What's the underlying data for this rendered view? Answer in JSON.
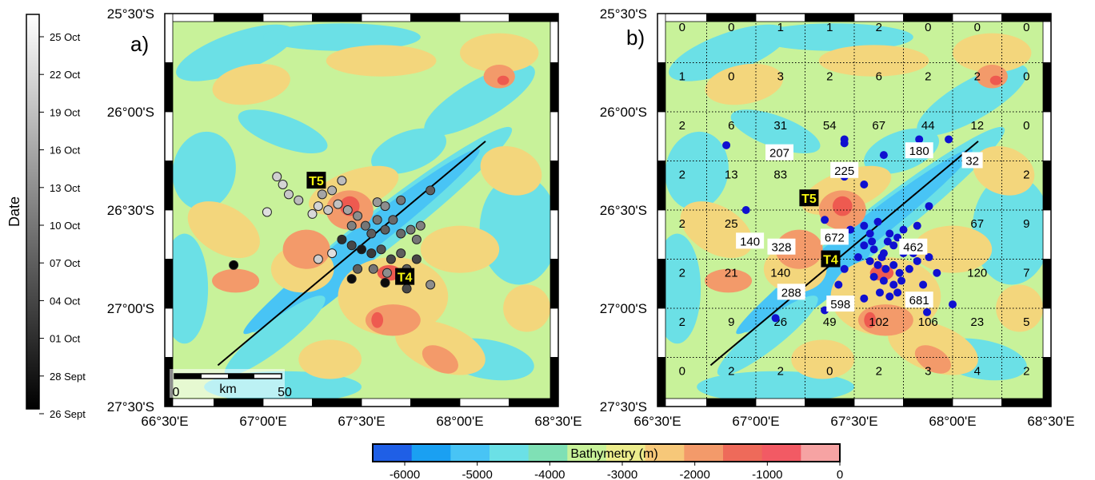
{
  "date_colorbar": {
    "title": "Date",
    "labels": [
      "25 Oct",
      "22 Oct",
      "19 Oct",
      "16 Oct",
      "13 Oct",
      "10 Oct",
      "07 Oct",
      "04 Oct",
      "01 Oct",
      "28 Sept",
      "26 Sept"
    ]
  },
  "panel_a": {
    "label": "a)",
    "lat_labels": [
      "25°30'S",
      "26°00'S",
      "26°30'S",
      "27°00'S",
      "27°30'S"
    ],
    "lon_labels": [
      "66°30'E",
      "67°00'E",
      "67°30'E",
      "68°00'E",
      "68°30'E"
    ],
    "markers": [
      {
        "id": "T5",
        "lon": 67.27,
        "lat": -26.35
      },
      {
        "id": "T4",
        "lon": 67.72,
        "lat": -26.84
      }
    ],
    "scale_bar": {
      "left_label": "0",
      "unit_label": "km",
      "right_label": "50"
    },
    "profile_line": [
      [
        66.77,
        -27.29
      ],
      [
        68.13,
        -26.15
      ]
    ],
    "events": [
      {
        "lon": 67.07,
        "lat": -26.33,
        "shade": 0.88
      },
      {
        "lon": 67.1,
        "lat": -26.37,
        "shade": 0.9
      },
      {
        "lon": 67.13,
        "lat": -26.42,
        "shade": 0.85
      },
      {
        "lon": 67.02,
        "lat": -26.51,
        "shade": 0.95
      },
      {
        "lon": 67.18,
        "lat": -26.45,
        "shade": 0.8
      },
      {
        "lon": 67.3,
        "lat": -26.42,
        "shade": 0.7
      },
      {
        "lon": 67.28,
        "lat": -26.48,
        "shade": 0.9
      },
      {
        "lon": 67.25,
        "lat": -26.52,
        "shade": 0.92
      },
      {
        "lon": 67.33,
        "lat": -26.5,
        "shade": 0.85
      },
      {
        "lon": 67.38,
        "lat": -26.47,
        "shade": 0.82
      },
      {
        "lon": 67.43,
        "lat": -26.5,
        "shade": 0.7
      },
      {
        "lon": 67.48,
        "lat": -26.53,
        "shade": 0.6
      },
      {
        "lon": 67.45,
        "lat": -26.58,
        "shade": 0.55
      },
      {
        "lon": 67.52,
        "lat": -26.58,
        "shade": 0.5
      },
      {
        "lon": 67.55,
        "lat": -26.62,
        "shade": 0.4
      },
      {
        "lon": 67.58,
        "lat": -26.55,
        "shade": 0.5
      },
      {
        "lon": 67.62,
        "lat": -26.6,
        "shade": 0.4
      },
      {
        "lon": 67.66,
        "lat": -26.55,
        "shade": 0.45
      },
      {
        "lon": 67.7,
        "lat": -26.62,
        "shade": 0.45
      },
      {
        "lon": 67.75,
        "lat": -26.6,
        "shade": 0.5
      },
      {
        "lon": 67.78,
        "lat": -26.65,
        "shade": 0.5
      },
      {
        "lon": 67.8,
        "lat": -26.58,
        "shade": 0.55
      },
      {
        "lon": 67.4,
        "lat": -26.65,
        "shade": 0.2
      },
      {
        "lon": 67.45,
        "lat": -26.68,
        "shade": 0.3
      },
      {
        "lon": 67.5,
        "lat": -26.7,
        "shade": 0.1
      },
      {
        "lon": 67.55,
        "lat": -26.72,
        "shade": 0.25
      },
      {
        "lon": 67.6,
        "lat": -26.7,
        "shade": 0.35
      },
      {
        "lon": 67.65,
        "lat": -26.75,
        "shade": 0.3
      },
      {
        "lon": 67.7,
        "lat": -26.72,
        "shade": 0.4
      },
      {
        "lon": 67.78,
        "lat": -26.75,
        "shade": 0.3
      },
      {
        "lon": 67.48,
        "lat": -26.8,
        "shade": 0.4
      },
      {
        "lon": 67.56,
        "lat": -26.8,
        "shade": 0.5
      },
      {
        "lon": 67.63,
        "lat": -26.82,
        "shade": 0.6
      },
      {
        "lon": 67.73,
        "lat": -26.8,
        "shade": 0.4
      },
      {
        "lon": 67.35,
        "lat": -26.72,
        "shade": 0.95
      },
      {
        "lon": 67.28,
        "lat": -26.75,
        "shade": 0.88
      },
      {
        "lon": 67.45,
        "lat": -26.85,
        "shade": 0.05
      },
      {
        "lon": 67.62,
        "lat": -26.87,
        "shade": 0.05
      },
      {
        "lon": 67.73,
        "lat": -26.9,
        "shade": 0.3
      },
      {
        "lon": 67.85,
        "lat": -26.88,
        "shade": 0.6
      },
      {
        "lon": 67.85,
        "lat": -26.4,
        "shade": 0.4
      },
      {
        "lon": 67.7,
        "lat": -26.45,
        "shade": 0.5
      },
      {
        "lon": 67.4,
        "lat": -26.35,
        "shade": 0.8
      },
      {
        "lon": 67.35,
        "lat": -26.4,
        "shade": 0.75
      },
      {
        "lon": 67.58,
        "lat": -26.46,
        "shade": 0.65
      },
      {
        "lon": 67.62,
        "lat": -26.48,
        "shade": 0.6
      },
      {
        "lon": 66.85,
        "lat": -26.78,
        "shade": 0.02
      }
    ]
  },
  "panel_b": {
    "label": "b)",
    "lat_labels": [
      "25°30'S",
      "26°00'S",
      "26°30'S",
      "27°00'S",
      "27°30'S"
    ],
    "lon_labels": [
      "66°30'E",
      "67°00'E",
      "67°30'E",
      "68°00'E",
      "68°30'E"
    ],
    "markers": [
      {
        "id": "T5",
        "lon": 67.27,
        "lat": -26.44
      },
      {
        "id": "T4",
        "lon": 67.38,
        "lat": -26.75
      }
    ],
    "profile_line": [
      [
        66.77,
        -27.29
      ],
      [
        68.13,
        -26.15
      ]
    ],
    "grid_counts": [
      [
        "0",
        "0",
        "1",
        "1",
        "2",
        "0",
        "0",
        "0"
      ],
      [
        "1",
        "0",
        "3",
        "2",
        "6",
        "2",
        "2",
        "0"
      ],
      [
        "2",
        "6",
        "31",
        "54",
        "67",
        "44",
        "12",
        "0"
      ],
      [
        "2",
        "13",
        "83",
        "",
        "",
        "",
        "",
        "2"
      ],
      [
        "2",
        "25",
        "",
        "",
        "",
        "",
        "67",
        "9"
      ],
      [
        "2",
        "21",
        "140",
        "",
        "",
        "",
        "120",
        "7"
      ],
      [
        "2",
        "9",
        "26",
        "49",
        "102",
        "106",
        "23",
        "5"
      ],
      [
        "0",
        "2",
        "2",
        "0",
        "2",
        "3",
        "4",
        "2"
      ]
    ],
    "boxed_counts": [
      {
        "text": "207",
        "lon": 67.12,
        "lat": -26.21
      },
      {
        "text": "225",
        "lon": 67.45,
        "lat": -26.3
      },
      {
        "text": "180",
        "lon": 67.83,
        "lat": -26.2
      },
      {
        "text": "32",
        "lon": 68.1,
        "lat": -26.25
      },
      {
        "text": "140",
        "lon": 66.97,
        "lat": -26.66
      },
      {
        "text": "328",
        "lon": 67.13,
        "lat": -26.69
      },
      {
        "text": "672",
        "lon": 67.4,
        "lat": -26.64
      },
      {
        "text": "462",
        "lon": 67.8,
        "lat": -26.69
      },
      {
        "text": "288",
        "lon": 67.18,
        "lat": -26.92
      },
      {
        "text": "598",
        "lon": 67.43,
        "lat": -26.98
      },
      {
        "text": "681",
        "lon": 67.83,
        "lat": -26.96
      }
    ],
    "events": [
      {
        "lon": 66.85,
        "lat": -26.17
      },
      {
        "lon": 67.45,
        "lat": -26.14
      },
      {
        "lon": 67.45,
        "lat": -26.16
      },
      {
        "lon": 67.65,
        "lat": -26.22
      },
      {
        "lon": 67.83,
        "lat": -26.14
      },
      {
        "lon": 67.98,
        "lat": -26.14
      },
      {
        "lon": 67.45,
        "lat": -26.33
      },
      {
        "lon": 67.55,
        "lat": -26.37
      },
      {
        "lon": 67.88,
        "lat": -26.48
      },
      {
        "lon": 66.95,
        "lat": -26.5
      },
      {
        "lon": 67.35,
        "lat": -26.55
      },
      {
        "lon": 67.48,
        "lat": -26.6
      },
      {
        "lon": 67.55,
        "lat": -26.58
      },
      {
        "lon": 67.58,
        "lat": -26.62
      },
      {
        "lon": 67.62,
        "lat": -26.56
      },
      {
        "lon": 67.68,
        "lat": -26.62
      },
      {
        "lon": 67.72,
        "lat": -26.64
      },
      {
        "lon": 67.75,
        "lat": -26.6
      },
      {
        "lon": 67.82,
        "lat": -26.58
      },
      {
        "lon": 67.55,
        "lat": -26.68
      },
      {
        "lon": 67.6,
        "lat": -26.7
      },
      {
        "lon": 67.65,
        "lat": -26.72
      },
      {
        "lon": 67.7,
        "lat": -26.68
      },
      {
        "lon": 67.75,
        "lat": -26.72
      },
      {
        "lon": 67.78,
        "lat": -26.7
      },
      {
        "lon": 67.52,
        "lat": -26.74
      },
      {
        "lon": 67.58,
        "lat": -26.76
      },
      {
        "lon": 67.62,
        "lat": -26.78
      },
      {
        "lon": 67.66,
        "lat": -26.8
      },
      {
        "lon": 67.7,
        "lat": -26.78
      },
      {
        "lon": 67.73,
        "lat": -26.82
      },
      {
        "lon": 67.78,
        "lat": -26.8
      },
      {
        "lon": 67.82,
        "lat": -26.76
      },
      {
        "lon": 67.6,
        "lat": -26.84
      },
      {
        "lon": 67.65,
        "lat": -26.86
      },
      {
        "lon": 67.7,
        "lat": -26.88
      },
      {
        "lon": 67.74,
        "lat": -26.86
      },
      {
        "lon": 67.63,
        "lat": -26.92
      },
      {
        "lon": 67.68,
        "lat": -26.94
      },
      {
        "lon": 67.72,
        "lat": -26.92
      },
      {
        "lon": 67.55,
        "lat": -26.95
      },
      {
        "lon": 67.42,
        "lat": -26.88
      },
      {
        "lon": 67.45,
        "lat": -26.8
      },
      {
        "lon": 67.88,
        "lat": -26.74
      },
      {
        "lon": 67.92,
        "lat": -26.82
      },
      {
        "lon": 67.85,
        "lat": -26.88
      },
      {
        "lon": 68.0,
        "lat": -26.98
      },
      {
        "lon": 67.8,
        "lat": -26.72
      },
      {
        "lon": 67.35,
        "lat": -27.01
      },
      {
        "lon": 67.87,
        "lat": -27.02
      },
      {
        "lon": 67.1,
        "lat": -27.05
      },
      {
        "lon": 67.64,
        "lat": -26.74
      },
      {
        "lon": 67.67,
        "lat": -26.66
      },
      {
        "lon": 67.59,
        "lat": -26.66
      }
    ]
  },
  "bathymetry_colorbar": {
    "title": "Bathymetry (m)",
    "ticks": [
      "-6000",
      "-5000",
      "-4000",
      "-3000",
      "-2000",
      "-1000",
      "0"
    ],
    "colors": [
      "#1f5fe6",
      "#1aa0f2",
      "#48c4f5",
      "#6be0e6",
      "#7fe0b5",
      "#c8f29a",
      "#ecec8c",
      "#f6c879",
      "#f39a6a",
      "#ee6a5a",
      "#f25a64",
      "#f6a3a3"
    ]
  },
  "colors": {
    "ocean_base": "#c8f29a",
    "deep": "#6be0e6",
    "deeper": "#48c4f5",
    "shallow": "#f3d67c",
    "shallower": "#f39a6a",
    "peak": "#ee5a50",
    "event_blue": "#1010d0",
    "marker_bg": "#000000",
    "marker_fg": "#f5f510"
  }
}
